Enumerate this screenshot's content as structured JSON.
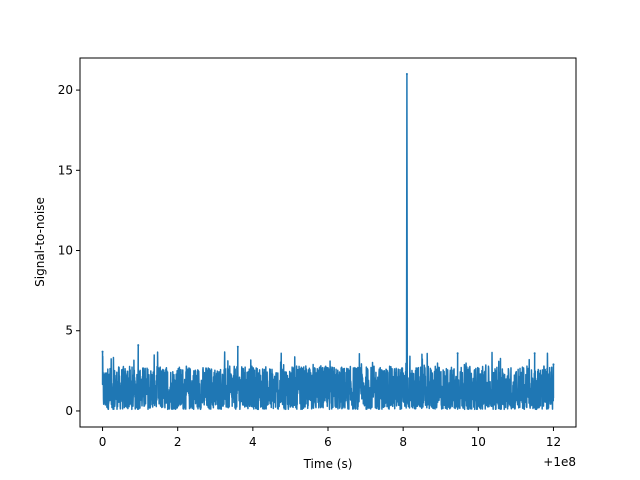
{
  "chart_data": {
    "type": "line",
    "xlabel": "Time (s)",
    "ylabel": "Signal-to-noise",
    "x_offset_label": "+1e8",
    "xlim": [
      -0.6,
      12.6
    ],
    "ylim": [
      -1.0,
      22.0
    ],
    "x_ticks": [
      0,
      2,
      4,
      6,
      8,
      10,
      12
    ],
    "y_ticks": [
      0,
      5,
      10,
      15,
      20
    ],
    "x_tick_labels": [
      "0",
      "2",
      "4",
      "6",
      "8",
      "10",
      "12"
    ],
    "y_tick_labels": [
      "0",
      "5",
      "10",
      "15",
      "20"
    ],
    "grid": false,
    "line_color": "#1f77b4",
    "series": [
      {
        "noise_band": {
          "x_start": 0,
          "x_end": 12,
          "low": 0.1,
          "typical_high": 2.8
        },
        "notable_points": [
          {
            "x": 0.0,
            "y": 3.7
          },
          {
            "x": 0.95,
            "y": 4.1
          },
          {
            "x": 3.6,
            "y": 4.0
          },
          {
            "x": 8.1,
            "y": 21.0
          },
          {
            "x": 9.45,
            "y": 3.6
          },
          {
            "x": 11.5,
            "y": 3.6
          },
          {
            "x": 12.0,
            "y": 2.9
          }
        ]
      }
    ]
  }
}
